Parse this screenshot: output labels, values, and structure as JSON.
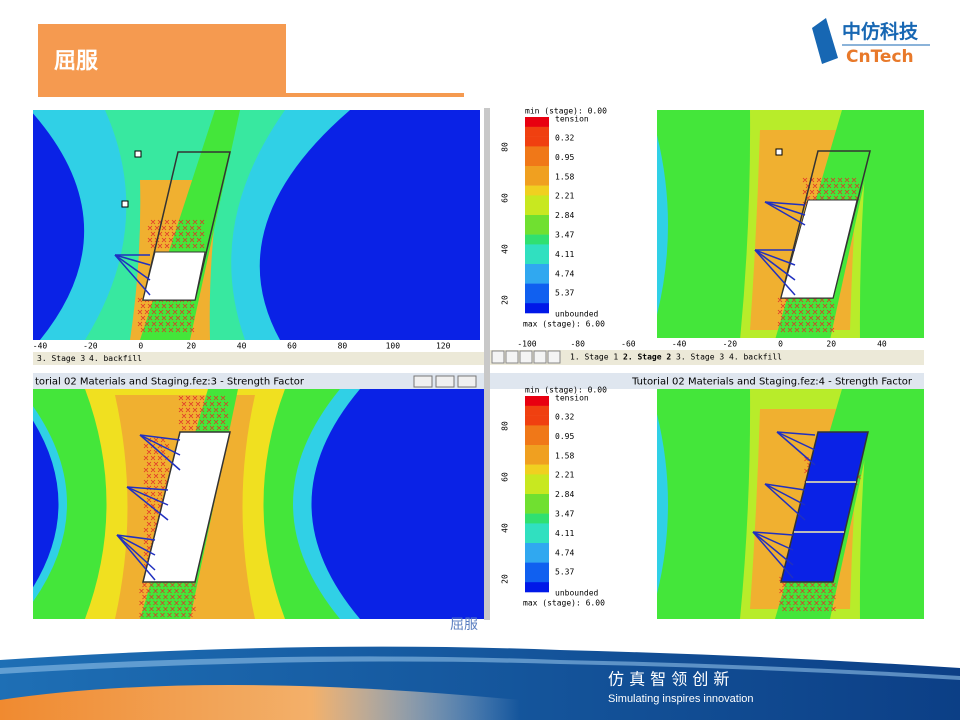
{
  "header": {
    "title": "屈服"
  },
  "logo": {
    "cn": "中仿科技",
    "en": "CnTech"
  },
  "top_left": {
    "x_ticks": [
      "-40",
      "-20",
      "0",
      "20",
      "40",
      "60",
      "80",
      "100",
      "120"
    ],
    "tabs": [
      "3. Stage 3",
      "4. backfill"
    ]
  },
  "top_right": {
    "legend": {
      "min": "min (stage): 0.00",
      "heading": "tension",
      "labels": [
        "0.32",
        "0.95",
        "1.58",
        "2.21",
        "2.84",
        "3.47",
        "4.11",
        "4.74",
        "5.37"
      ],
      "end": "unbounded",
      "max": "max (stage): 6.00"
    },
    "y_ticks": [
      "80",
      "60",
      "40",
      "20"
    ],
    "x_ticks": [
      "-100",
      "-80",
      "-60",
      "-40",
      "-20",
      "0",
      "20",
      "40"
    ],
    "tabs": [
      "1. Stage 1",
      "2. Stage 2",
      "3. Stage 3",
      "4. backfill"
    ]
  },
  "bottom_left": {
    "title": "torial 02 Materials and Staging.fez:3 - Strength Factor"
  },
  "bottom_right": {
    "title": "Tutorial 02 Materials and Staging.fez:4 - Strength Factor",
    "legend": {
      "min": "min (stage): 0.00",
      "heading": "tension",
      "labels": [
        "0.32",
        "0.95",
        "1.58",
        "2.21",
        "2.84",
        "3.47",
        "4.11",
        "4.74",
        "5.37"
      ],
      "end": "unbounded",
      "max": "max (stage): 6.00"
    },
    "y_ticks": [
      "80",
      "60",
      "40",
      "20"
    ]
  },
  "caption": "屈服",
  "footer": {
    "slogan_cn": "仿 真 智 领 创 新",
    "slogan_en": "Simulating inspires innovation"
  }
}
